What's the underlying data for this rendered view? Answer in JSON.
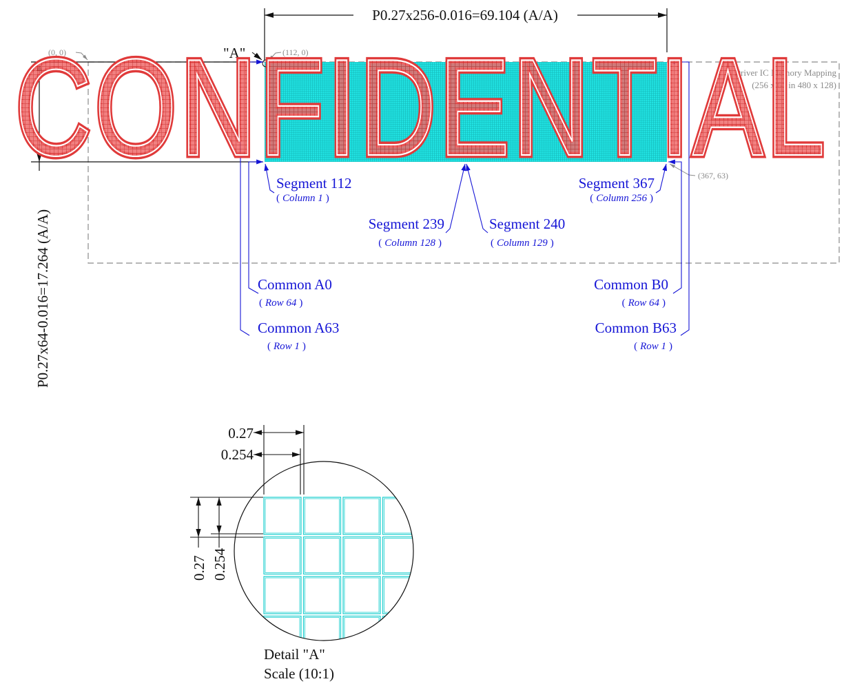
{
  "watermark": {
    "text": "CONFIDENTIAL",
    "color": "#e03a3a"
  },
  "colors": {
    "pixel_fill": "#21e3e3",
    "pixel_grid": "#1ccfcf",
    "callout": "#1515d6",
    "dimension": "#111111",
    "boundary": "#8a8a8a"
  },
  "driver_ic": {
    "title": "Driver IC Memory Mapping",
    "subtitle": "(256 x 64 in 480 x 128)",
    "origin_label": "(0, 0)",
    "start_label": "(112, 0)",
    "end_label": "(367, 63)"
  },
  "dimensions": {
    "width": "P0.27x256-0.016=69.104 (A/A)",
    "height": "P0.27x64-0.016=17.264 (A/A)",
    "detail_marker": "\"A\""
  },
  "segments": [
    {
      "name": "Segment 112",
      "column": "Column 1"
    },
    {
      "name": "Segment 239",
      "column": "Column 128"
    },
    {
      "name": "Segment 240",
      "column": "Column 129"
    },
    {
      "name": "Segment 367",
      "column": "Column 256"
    }
  ],
  "commons": [
    {
      "name": "Common A0",
      "row": "Row 64"
    },
    {
      "name": "Common A63",
      "row": "Row 1"
    },
    {
      "name": "Common B0",
      "row": "Row 64"
    },
    {
      "name": "Common B63",
      "row": "Row 1"
    }
  ],
  "detail": {
    "pitch_h": "0.27",
    "pixel_h": "0.254",
    "pitch_v": "0.27",
    "pixel_v": "0.254",
    "title": "Detail \"A\"",
    "scale": "Scale (10:1)"
  }
}
